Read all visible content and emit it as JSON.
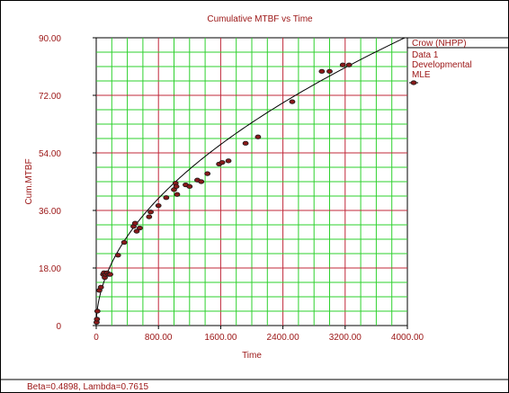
{
  "chart_data": {
    "type": "scatter",
    "title": "Cumulative MTBF vs Time",
    "xlabel": "Time",
    "ylabel": "Cum.MTBF",
    "xlim": [
      0,
      4000
    ],
    "ylim": [
      0,
      90
    ],
    "x_ticks": [
      "0",
      "800.00",
      "1600.00",
      "2400.00",
      "3200.00",
      "4000.00"
    ],
    "y_ticks": [
      "0",
      "18.00",
      "36.00",
      "54.00",
      "72.00",
      "90.00"
    ],
    "grid": true,
    "legend": {
      "position": "right",
      "title": "Crow (NHPP)",
      "entries": [
        "Data 1",
        "Developmental",
        "MLE"
      ]
    },
    "footer": "Beta=0.4898, Lambda=0.7615",
    "fit": {
      "model": "Crow (NHPP)",
      "beta": 0.4898,
      "lambda": 0.7615
    },
    "series": [
      {
        "name": "Data 1",
        "points": [
          [
            5,
            1.0
          ],
          [
            10,
            2.0
          ],
          [
            15,
            4.5
          ],
          [
            40,
            11.0
          ],
          [
            60,
            12.0
          ],
          [
            90,
            16.0
          ],
          [
            100,
            16.5
          ],
          [
            110,
            15.0
          ],
          [
            120,
            16.0
          ],
          [
            140,
            16.5
          ],
          [
            160,
            16.0
          ],
          [
            180,
            16.0
          ],
          [
            280,
            22.0
          ],
          [
            360,
            26.0
          ],
          [
            480,
            31.0
          ],
          [
            500,
            32.0
          ],
          [
            520,
            29.5
          ],
          [
            560,
            30.5
          ],
          [
            680,
            34.0
          ],
          [
            700,
            35.5
          ],
          [
            800,
            37.5
          ],
          [
            900,
            40.0
          ],
          [
            1000,
            42.5
          ],
          [
            1020,
            44.5
          ],
          [
            1030,
            43.5
          ],
          [
            1040,
            41.0
          ],
          [
            1150,
            44.0
          ],
          [
            1200,
            43.5
          ],
          [
            1300,
            45.5
          ],
          [
            1350,
            45.0
          ],
          [
            1430,
            47.5
          ],
          [
            1580,
            50.5
          ],
          [
            1620,
            51.0
          ],
          [
            1700,
            51.5
          ],
          [
            1920,
            57.0
          ],
          [
            2080,
            59.0
          ],
          [
            2520,
            70.0
          ],
          [
            2900,
            79.5
          ],
          [
            3000,
            79.5
          ],
          [
            3170,
            81.5
          ],
          [
            3250,
            81.5
          ]
        ]
      }
    ]
  }
}
